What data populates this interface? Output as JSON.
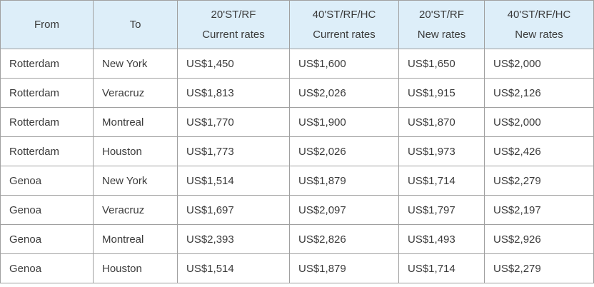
{
  "colors": {
    "header_bg": "#ddeef9",
    "border": "#a0a0a0",
    "text": "#3b3b3b"
  },
  "table": {
    "headers": [
      {
        "line1": "From",
        "line2": ""
      },
      {
        "line1": "To",
        "line2": ""
      },
      {
        "line1": "20'ST/RF",
        "line2": "Current rates"
      },
      {
        "line1": "40'ST/RF/HC",
        "line2": "Current rates"
      },
      {
        "line1": "20'ST/RF",
        "line2": "New rates"
      },
      {
        "line1": "40'ST/RF/HC",
        "line2": "New rates"
      }
    ],
    "rows": [
      [
        "Rotterdam",
        "New York",
        "US$1,450",
        "US$1,600",
        "US$1,650",
        "US$2,000"
      ],
      [
        "Rotterdam",
        "Veracruz",
        "US$1,813",
        "US$2,026",
        "US$1,915",
        "US$2,126"
      ],
      [
        "Rotterdam",
        "Montreal",
        "US$1,770",
        "US$1,900",
        "US$1,870",
        "US$2,000"
      ],
      [
        "Rotterdam",
        "Houston",
        "US$1,773",
        "US$2,026",
        "US$1,973",
        "US$2,426"
      ],
      [
        "Genoa",
        "New York",
        "US$1,514",
        "US$1,879",
        "US$1,714",
        "US$2,279"
      ],
      [
        "Genoa",
        "Veracruz",
        "US$1,697",
        "US$2,097",
        "US$1,797",
        "US$2,197"
      ],
      [
        "Genoa",
        "Montreal",
        "US$2,393",
        "US$2,826",
        "US$1,493",
        "US$2,926"
      ],
      [
        "Genoa",
        "Houston",
        "US$1,514",
        "US$1,879",
        "US$1,714",
        "US$2,279"
      ]
    ]
  }
}
